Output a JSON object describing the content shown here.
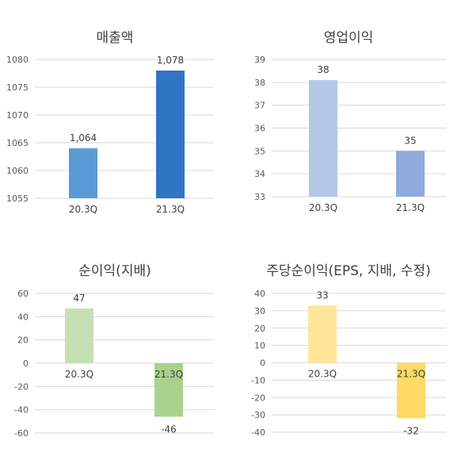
{
  "chart_data": [
    {
      "type": "bar",
      "title": "매출액",
      "categories": [
        "20.3Q",
        "21.3Q"
      ],
      "values": [
        1064,
        1078
      ],
      "value_labels": [
        "1,064",
        "1,078"
      ],
      "colors": [
        "#5B9BD5",
        "#2E75C3"
      ],
      "ylim": [
        1055,
        1080
      ],
      "yticks": [
        1055,
        1060,
        1065,
        1070,
        1075,
        1080
      ],
      "grid": true
    },
    {
      "type": "bar",
      "title": "영업이익",
      "categories": [
        "20.3Q",
        "21.3Q"
      ],
      "values": [
        38.1,
        35
      ],
      "value_labels": [
        "38",
        "35"
      ],
      "colors": [
        "#B4C7E7",
        "#8FAADC"
      ],
      "ylim": [
        33,
        39
      ],
      "yticks": [
        33,
        34,
        35,
        36,
        37,
        38,
        39
      ],
      "grid": true
    },
    {
      "type": "bar",
      "title": "순이익(지배)",
      "categories": [
        "20.3Q",
        "21.3Q"
      ],
      "values": [
        47,
        -46
      ],
      "value_labels": [
        "47",
        "-46"
      ],
      "colors": [
        "#C5E0B4",
        "#A9D18E"
      ],
      "ylim": [
        -60,
        60
      ],
      "yticks": [
        -60,
        -40,
        -20,
        0,
        20,
        40,
        60
      ],
      "grid": true
    },
    {
      "type": "bar",
      "title": "주당순이익(EPS, 지배, 수정)",
      "categories": [
        "20.3Q",
        "21.3Q"
      ],
      "values": [
        33,
        -32
      ],
      "value_labels": [
        "33",
        "-32"
      ],
      "colors": [
        "#FFE699",
        "#FFD966"
      ],
      "ylim": [
        -40,
        40
      ],
      "yticks": [
        -40,
        -30,
        -20,
        -10,
        0,
        10,
        20,
        30,
        40
      ],
      "grid": true
    }
  ]
}
